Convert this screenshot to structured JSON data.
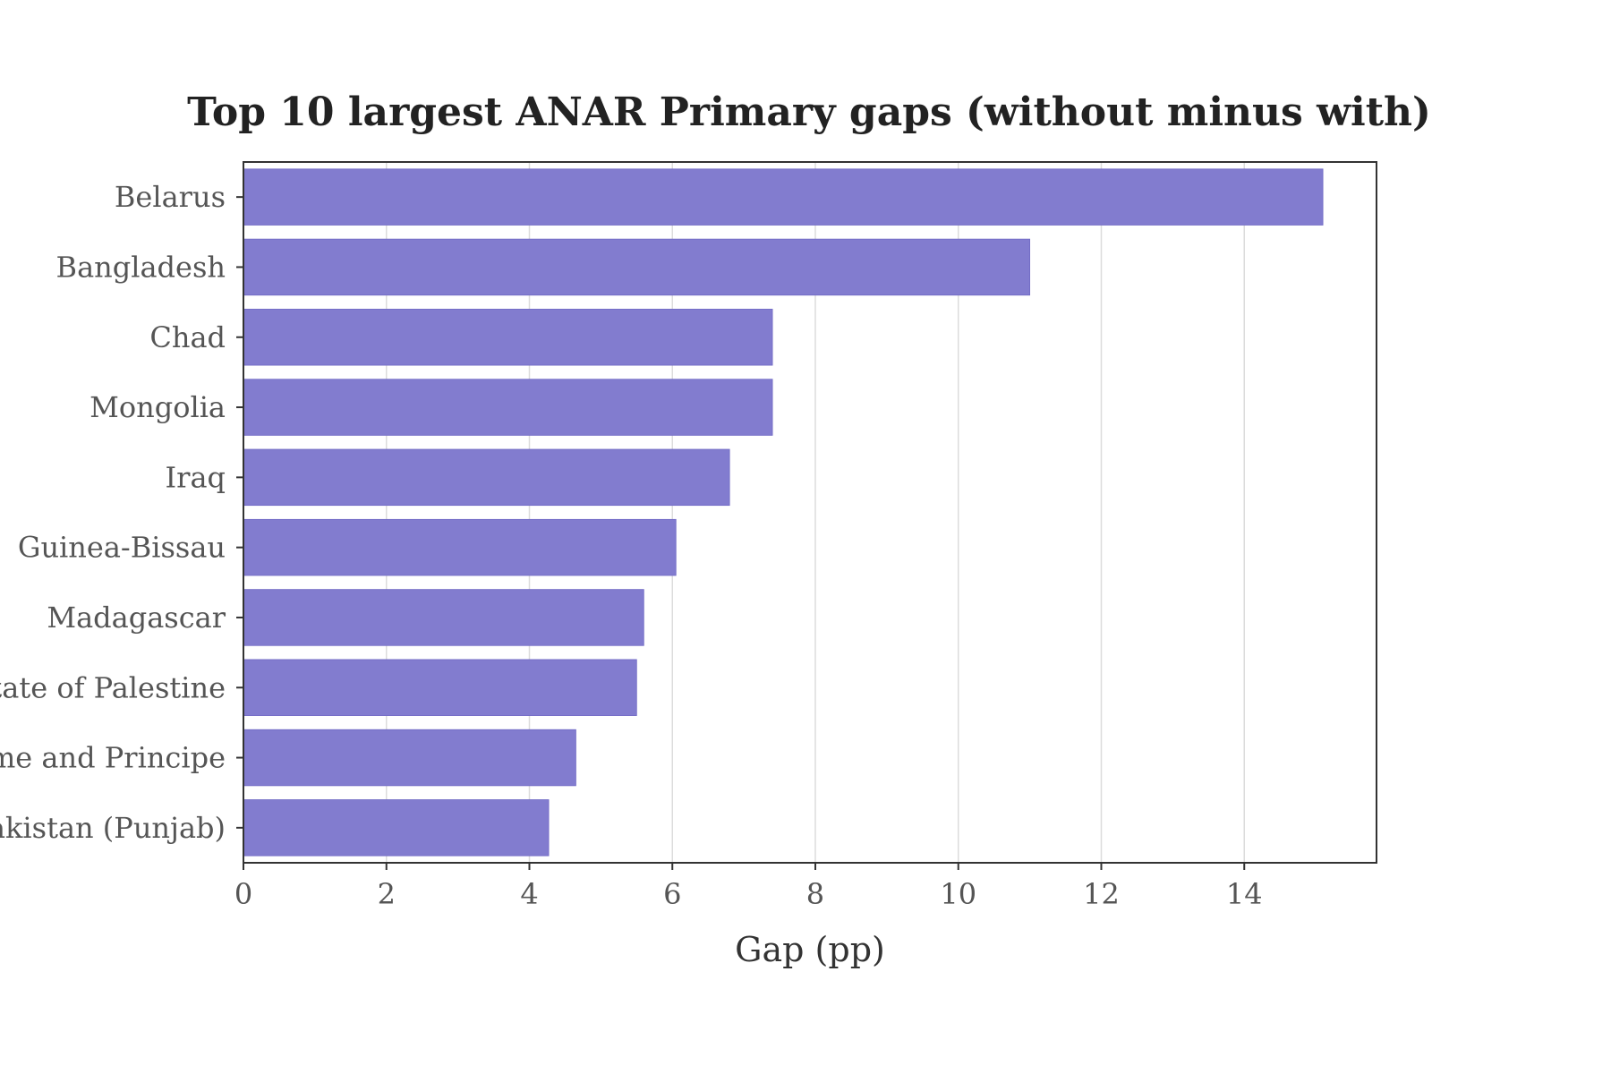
{
  "chart_data": {
    "type": "bar",
    "orientation": "horizontal",
    "title": "Top 10 largest ANAR Primary gaps (without minus with)",
    "xlabel": "Gap (pp)",
    "ylabel": "",
    "categories": [
      "Belarus",
      "Bangladesh",
      "Chad",
      "Mongolia",
      "Iraq",
      "Guinea-Bissau",
      "Madagascar",
      "State of Palestine",
      "Sao Tome and Principe",
      "Pakistan (Punjab)"
    ],
    "values": [
      15.1,
      11.0,
      7.4,
      7.4,
      6.8,
      6.05,
      5.6,
      5.5,
      4.65,
      4.27
    ],
    "xlim": [
      0,
      15.85
    ],
    "xticks": [
      0,
      2,
      4,
      6,
      8,
      10,
      12,
      14
    ],
    "grid": "vertical",
    "bar_color": "#827CCF",
    "axis_color": "#333333"
  }
}
